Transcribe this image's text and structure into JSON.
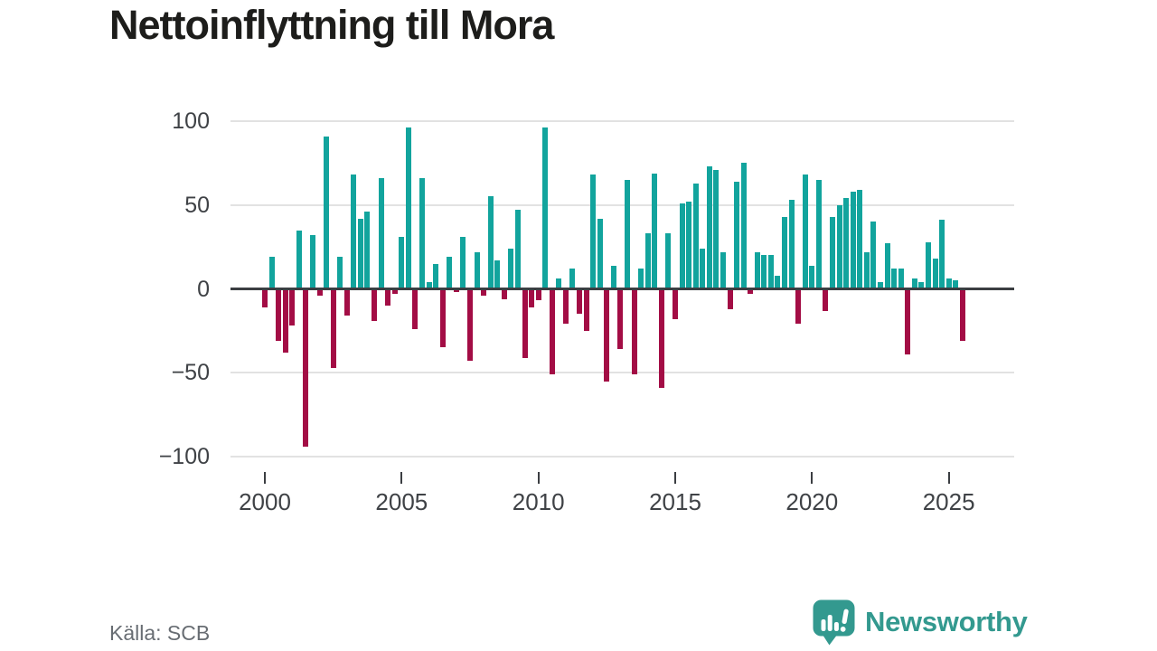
{
  "title": "Nettoinflyttning till Mora",
  "source": "Källa: SCB",
  "branding": {
    "logo_text": "Newsworthy",
    "logo_icon": "bar-chart-speech-bubble-icon"
  },
  "colors": {
    "positive": "#12a49d",
    "negative": "#a30d45",
    "axis": "#3b3e42",
    "grid": "#e2e2e2",
    "tick_text": "#3f4246",
    "brand_teal": "#33998f"
  },
  "chart_data": {
    "type": "bar",
    "title": "Nettoinflyttning till Mora",
    "frequency": "quarterly",
    "period_start": "2000 Q1",
    "period_end": "2025 Q3",
    "grid": true,
    "ylim": [
      -100,
      100
    ],
    "y_tick_values": [
      100,
      50,
      0,
      -50,
      -100
    ],
    "y_tick_labels": [
      "100",
      "50",
      "0",
      "−50",
      "−100"
    ],
    "x_tick_years": [
      2000,
      2005,
      2010,
      2015,
      2020,
      2025
    ],
    "x_tick_labels": [
      "2000",
      "2005",
      "2010",
      "2015",
      "2020",
      "2025"
    ],
    "values": [
      -11,
      19,
      -31,
      -38,
      -22,
      35,
      -94,
      32,
      -4,
      91,
      -47,
      19,
      -16,
      68,
      42,
      46,
      -19,
      66,
      -10,
      -3,
      31,
      96,
      -24,
      66,
      4,
      15,
      -35,
      19,
      -2,
      31,
      -43,
      22,
      -4,
      55,
      17,
      -6,
      24,
      47,
      -41,
      -11,
      -7,
      96,
      -51,
      6,
      -21,
      12,
      -15,
      -25,
      68,
      42,
      -55,
      14,
      -36,
      65,
      -51,
      12,
      33,
      69,
      -59,
      33,
      -18,
      51,
      52,
      63,
      24,
      73,
      71,
      22,
      -12,
      64,
      75,
      -3,
      22,
      20,
      20,
      8,
      43,
      53,
      -21,
      68,
      14,
      65,
      -13,
      43,
      50,
      54,
      58,
      59,
      22,
      40,
      4,
      27,
      12,
      12,
      -39,
      6,
      4,
      28,
      18,
      41,
      6,
      5,
      -31
    ]
  }
}
